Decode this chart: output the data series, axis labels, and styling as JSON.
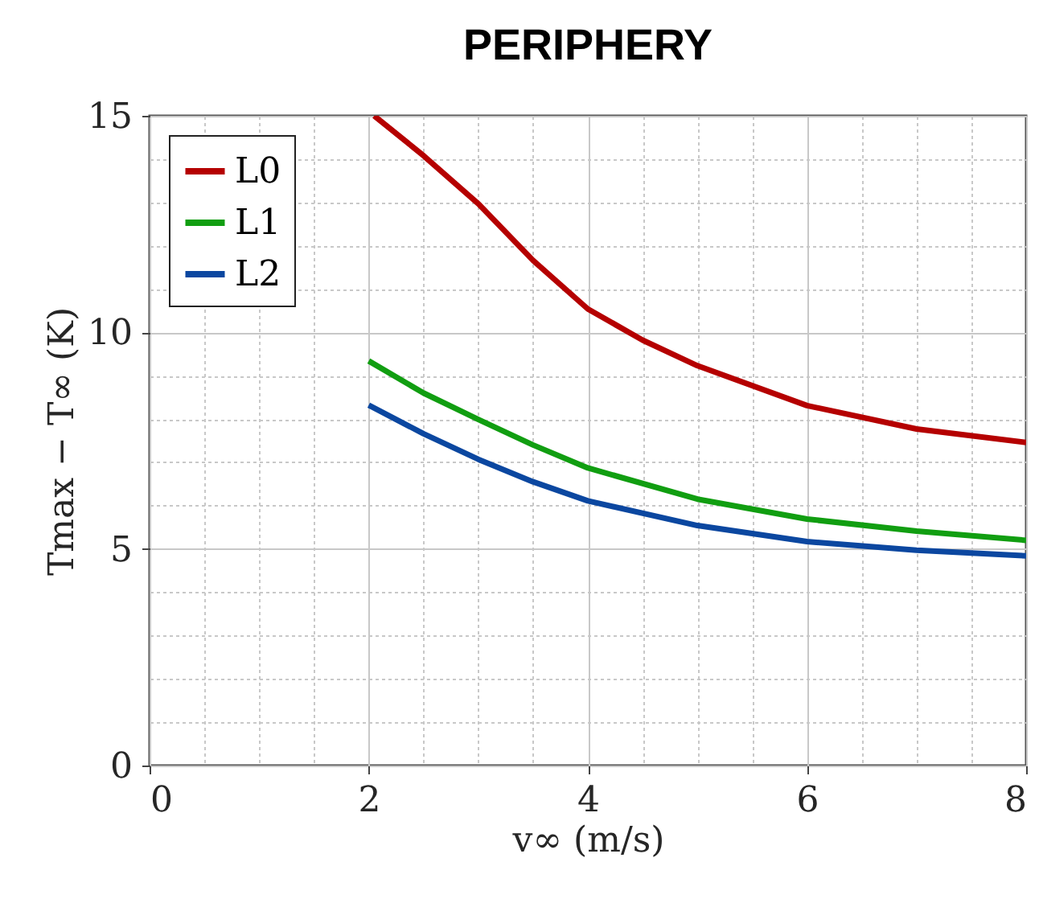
{
  "chart_data": {
    "type": "line",
    "title": "PERIPHERY",
    "xlabel": "v∞ (m/s)",
    "ylabel": "Tmax − T∞ (K)",
    "series": [
      {
        "name": "L0",
        "color": "#b50000",
        "x": [
          2.05,
          2.5,
          3,
          3.5,
          4,
          4.5,
          5,
          6,
          7,
          8
        ],
        "values": [
          15,
          14.08,
          12.97,
          11.66,
          10.54,
          9.82,
          9.23,
          8.31,
          7.77,
          7.46
        ]
      },
      {
        "name": "L1",
        "color": "#119e11",
        "x": [
          2,
          2.5,
          3,
          3.5,
          4,
          5,
          6,
          7,
          8
        ],
        "values": [
          9.34,
          8.6,
          7.99,
          7.4,
          6.87,
          6.15,
          5.69,
          5.41,
          5.2
        ]
      },
      {
        "name": "L2",
        "color": "#0b47a0",
        "x": [
          2,
          2.5,
          3,
          3.5,
          4,
          5,
          6,
          7,
          8
        ],
        "values": [
          8.32,
          7.66,
          7.07,
          6.55,
          6.11,
          5.54,
          5.17,
          4.97,
          4.84
        ]
      }
    ],
    "xlim": [
      0,
      8
    ],
    "ylim": [
      0,
      15
    ],
    "xticks": [
      0,
      {
        "value": 0.5,
        "label": null
      },
      {
        "value": 1,
        "label": null
      },
      {
        "value": 1.5,
        "label": null
      },
      2,
      {
        "value": 2.5,
        "label": null
      },
      {
        "value": 3,
        "label": null
      },
      {
        "value": 3.5,
        "label": null
      },
      4,
      {
        "value": 4.5,
        "label": null
      },
      {
        "value": 5,
        "label": null
      },
      {
        "value": 5.5,
        "label": null
      },
      6,
      {
        "value": 6.5,
        "label": null
      },
      {
        "value": 7,
        "label": null
      },
      {
        "value": 7.5,
        "label": null
      },
      8
    ],
    "yticks": [
      0,
      {
        "value": 1,
        "label": null
      },
      {
        "value": 2,
        "label": null
      },
      {
        "value": 3,
        "label": null
      },
      {
        "value": 4,
        "label": null
      },
      5,
      {
        "value": 6,
        "label": null
      },
      {
        "value": 7,
        "label": null
      },
      {
        "value": 8,
        "label": null
      },
      {
        "value": 9,
        "label": null
      },
      10,
      {
        "value": 11,
        "label": null
      },
      {
        "value": 12,
        "label": null
      },
      {
        "value": 13,
        "label": null
      },
      {
        "value": 14,
        "label": null
      },
      15
    ],
    "grid": true,
    "legend": "top left",
    "line_style": "solid",
    "marker": "none"
  }
}
